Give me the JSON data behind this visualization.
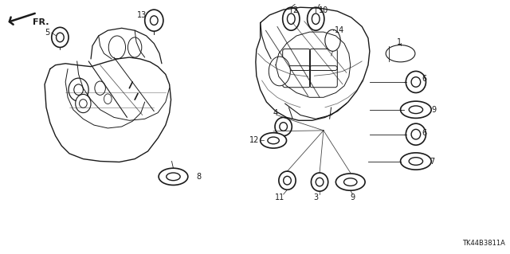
{
  "diagram_code": "TK44B3811A",
  "background_color": "#ffffff",
  "line_color": "#1a1a1a",
  "figsize": [
    6.4,
    3.19
  ],
  "dpi": 100
}
